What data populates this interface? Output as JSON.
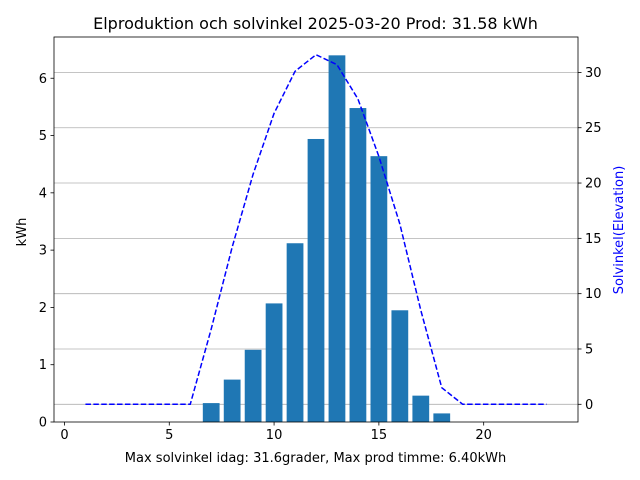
{
  "chart_data": {
    "type": "bar",
    "title": "Elproduktion och solvinkel 2025-03-20 Prod: 31.58 kWh",
    "xlabel": "Max solvinkel idag: 31.6grader, Max prod timme: 6.40kWh",
    "ylabel": "kWh",
    "y2label": "Solvinkel(Elevation)",
    "xlim": [
      -0.5,
      24.5
    ],
    "ylim": [
      0,
      6.72
    ],
    "y2lim": [
      -1.6,
      33.2
    ],
    "xticks": [
      0,
      5,
      10,
      15,
      20
    ],
    "yticks": [
      0,
      1,
      2,
      3,
      4,
      5,
      6
    ],
    "y2ticks": [
      0,
      5,
      10,
      15,
      20,
      25,
      30
    ],
    "grid": "horizontal lines at secondary-axis ticks",
    "bar_color": "#1f77b4",
    "line_color": "#0000ff",
    "series": [
      {
        "type": "bar",
        "axis": "left",
        "x": [
          7,
          8,
          9,
          10,
          11,
          12,
          13,
          14,
          15,
          16,
          17,
          18
        ],
        "values": [
          0.33,
          0.74,
          1.26,
          2.07,
          3.12,
          4.94,
          6.4,
          5.48,
          4.64,
          1.95,
          0.46,
          0.15
        ]
      },
      {
        "type": "line",
        "style": "dashed",
        "axis": "right",
        "x": [
          1,
          2,
          3,
          4,
          5,
          6,
          7,
          8,
          9,
          10,
          11,
          12,
          13,
          14,
          15,
          16,
          17,
          18,
          19,
          20,
          21,
          22,
          23
        ],
        "values": [
          0,
          0,
          0,
          0,
          0,
          0,
          6.8,
          14.2,
          20.8,
          26.3,
          30.1,
          31.6,
          30.7,
          27.6,
          22.4,
          16.3,
          8.5,
          1.5,
          0,
          0,
          0,
          0,
          0
        ]
      }
    ]
  }
}
